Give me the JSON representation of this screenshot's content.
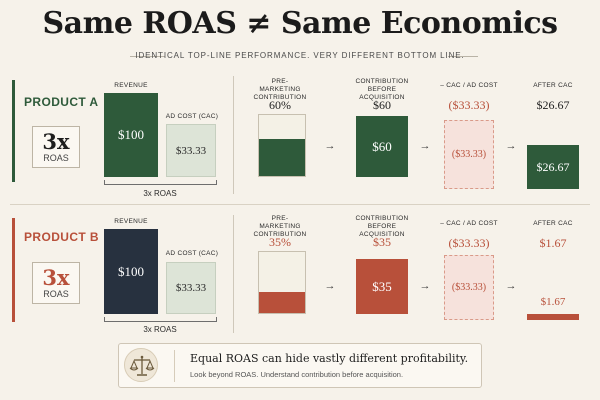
{
  "title": "Same ROAS ≠ Same Economics",
  "subtitle": "IDENTICAL TOP-LINE PERFORMANCE. VERY DIFFERENT BOTTOM LINE.",
  "colors": {
    "green": "#2e5a3a",
    "red": "#b8503a",
    "navy": "#27313f",
    "light_green": "#dde4d7",
    "light_pink": "#f6e2dc",
    "cream": "#f4f1e6",
    "background": "#f6f2ea"
  },
  "labels": {
    "revenue": "REVENUE",
    "ad_cost": "AD COST (CAC)",
    "pre_marketing": "PRE-MARKETING CONTRIBUTION",
    "contribution": "CONTRIBUTION BEFORE ACQUISITION",
    "cac": "– CAC / AD COST",
    "after_cac": "AFTER CAC",
    "bracket": "3x ROAS"
  },
  "products": [
    {
      "name": "PRODUCT A",
      "roas_big": "3x",
      "roas_small": "ROAS",
      "revenue": "$100",
      "ad_cost": "$33.33",
      "pre_pct": "60%",
      "contribution": "$60",
      "cac": "($33.33)",
      "after_cac": "$26.67",
      "chart_values": {
        "revenue": 100,
        "ad_cost": 33.33,
        "pre_pct": 60,
        "contribution": 60,
        "cac": -33.33,
        "after_cac": 26.67
      }
    },
    {
      "name": "PRODUCT B",
      "roas_big": "3x",
      "roas_small": "ROAS",
      "revenue": "$100",
      "ad_cost": "$33.33",
      "pre_pct": "35%",
      "contribution": "$35",
      "cac": "($33.33)",
      "after_cac": "$1.67",
      "chart_values": {
        "revenue": 100,
        "ad_cost": 33.33,
        "pre_pct": 35,
        "contribution": 35,
        "cac": -33.33,
        "after_cac": 1.67
      }
    }
  ],
  "footer": {
    "icon": "balance-scale-icon",
    "main": "Equal ROAS can hide vastly different profitability.",
    "sub": "Look beyond ROAS. Understand contribution before acquisition."
  },
  "arrow": "→"
}
